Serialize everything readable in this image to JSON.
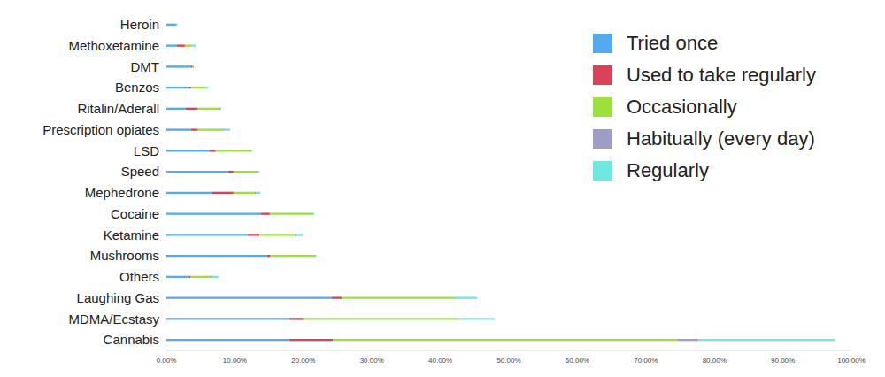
{
  "chart_data": {
    "type": "bar",
    "orientation": "horizontal",
    "stacked": true,
    "grid": false,
    "legend": "upper right",
    "categories": [
      "Heroin",
      "Methoxetamine",
      "DMT",
      "Benzos",
      "Ritalin/Aderall",
      "Prescription opiates",
      "LSD",
      "Speed",
      "Mephedrone",
      "Cocaine",
      "Ketamine",
      "Mushrooms",
      "Others",
      "Laughing Gas",
      "MDMA/Ecstasy",
      "Cannabis"
    ],
    "series": [
      {
        "name": "Tried once",
        "color": "#55a9ee",
        "values": [
          1.5,
          1.5,
          3.6,
          3.2,
          2.8,
          3.6,
          6.3,
          9.0,
          6.7,
          13.8,
          11.8,
          14.7,
          3.2,
          24.1,
          17.9,
          17.9
        ]
      },
      {
        "name": "Used to take regularly",
        "color": "#d9435a",
        "values": [
          0,
          1.2,
          0.2,
          0.4,
          1.8,
          1.0,
          0.9,
          0.8,
          3.1,
          1.3,
          1.8,
          0.5,
          0.3,
          1.5,
          2.1,
          6.4
        ]
      },
      {
        "name": "Occasionally",
        "color": "#9be03d",
        "values": [
          0,
          1.0,
          0.2,
          2.0,
          3.1,
          3.7,
          5.1,
          3.3,
          3.1,
          6.2,
          5.1,
          6.5,
          2.9,
          16.4,
          22.7,
          50.3
        ]
      },
      {
        "name": "Habitually (every day)",
        "color": "#a09cc8",
        "values": [
          0,
          0.1,
          0,
          0.1,
          0.2,
          0.2,
          0.1,
          0.2,
          0.2,
          0.1,
          0.2,
          0,
          0.4,
          0.1,
          0.1,
          3.1
        ]
      },
      {
        "name": "Regularly",
        "color": "#6fe8e0",
        "values": [
          0.1,
          0.5,
          0,
          0.4,
          0.1,
          0.8,
          0.1,
          0.3,
          0.6,
          0.2,
          1.0,
          0.2,
          0.8,
          3.3,
          5.1,
          20.0
        ]
      }
    ],
    "xlim": [
      0,
      100
    ],
    "xticks": [
      {
        "value": 0,
        "label": "0.00%"
      },
      {
        "value": 10,
        "label": "10.00%"
      },
      {
        "value": 20,
        "label": "20.00%"
      },
      {
        "value": 30,
        "label": "30.00%"
      },
      {
        "value": 40,
        "label": "40.00%"
      },
      {
        "value": 50,
        "label": "50.00%"
      },
      {
        "value": 60,
        "label": "60.00%"
      },
      {
        "value": 70,
        "label": "70.00%"
      },
      {
        "value": 80,
        "label": "80.00%"
      },
      {
        "value": 90,
        "label": "90.00%"
      },
      {
        "value": 100,
        "label": "100.00%"
      }
    ]
  }
}
